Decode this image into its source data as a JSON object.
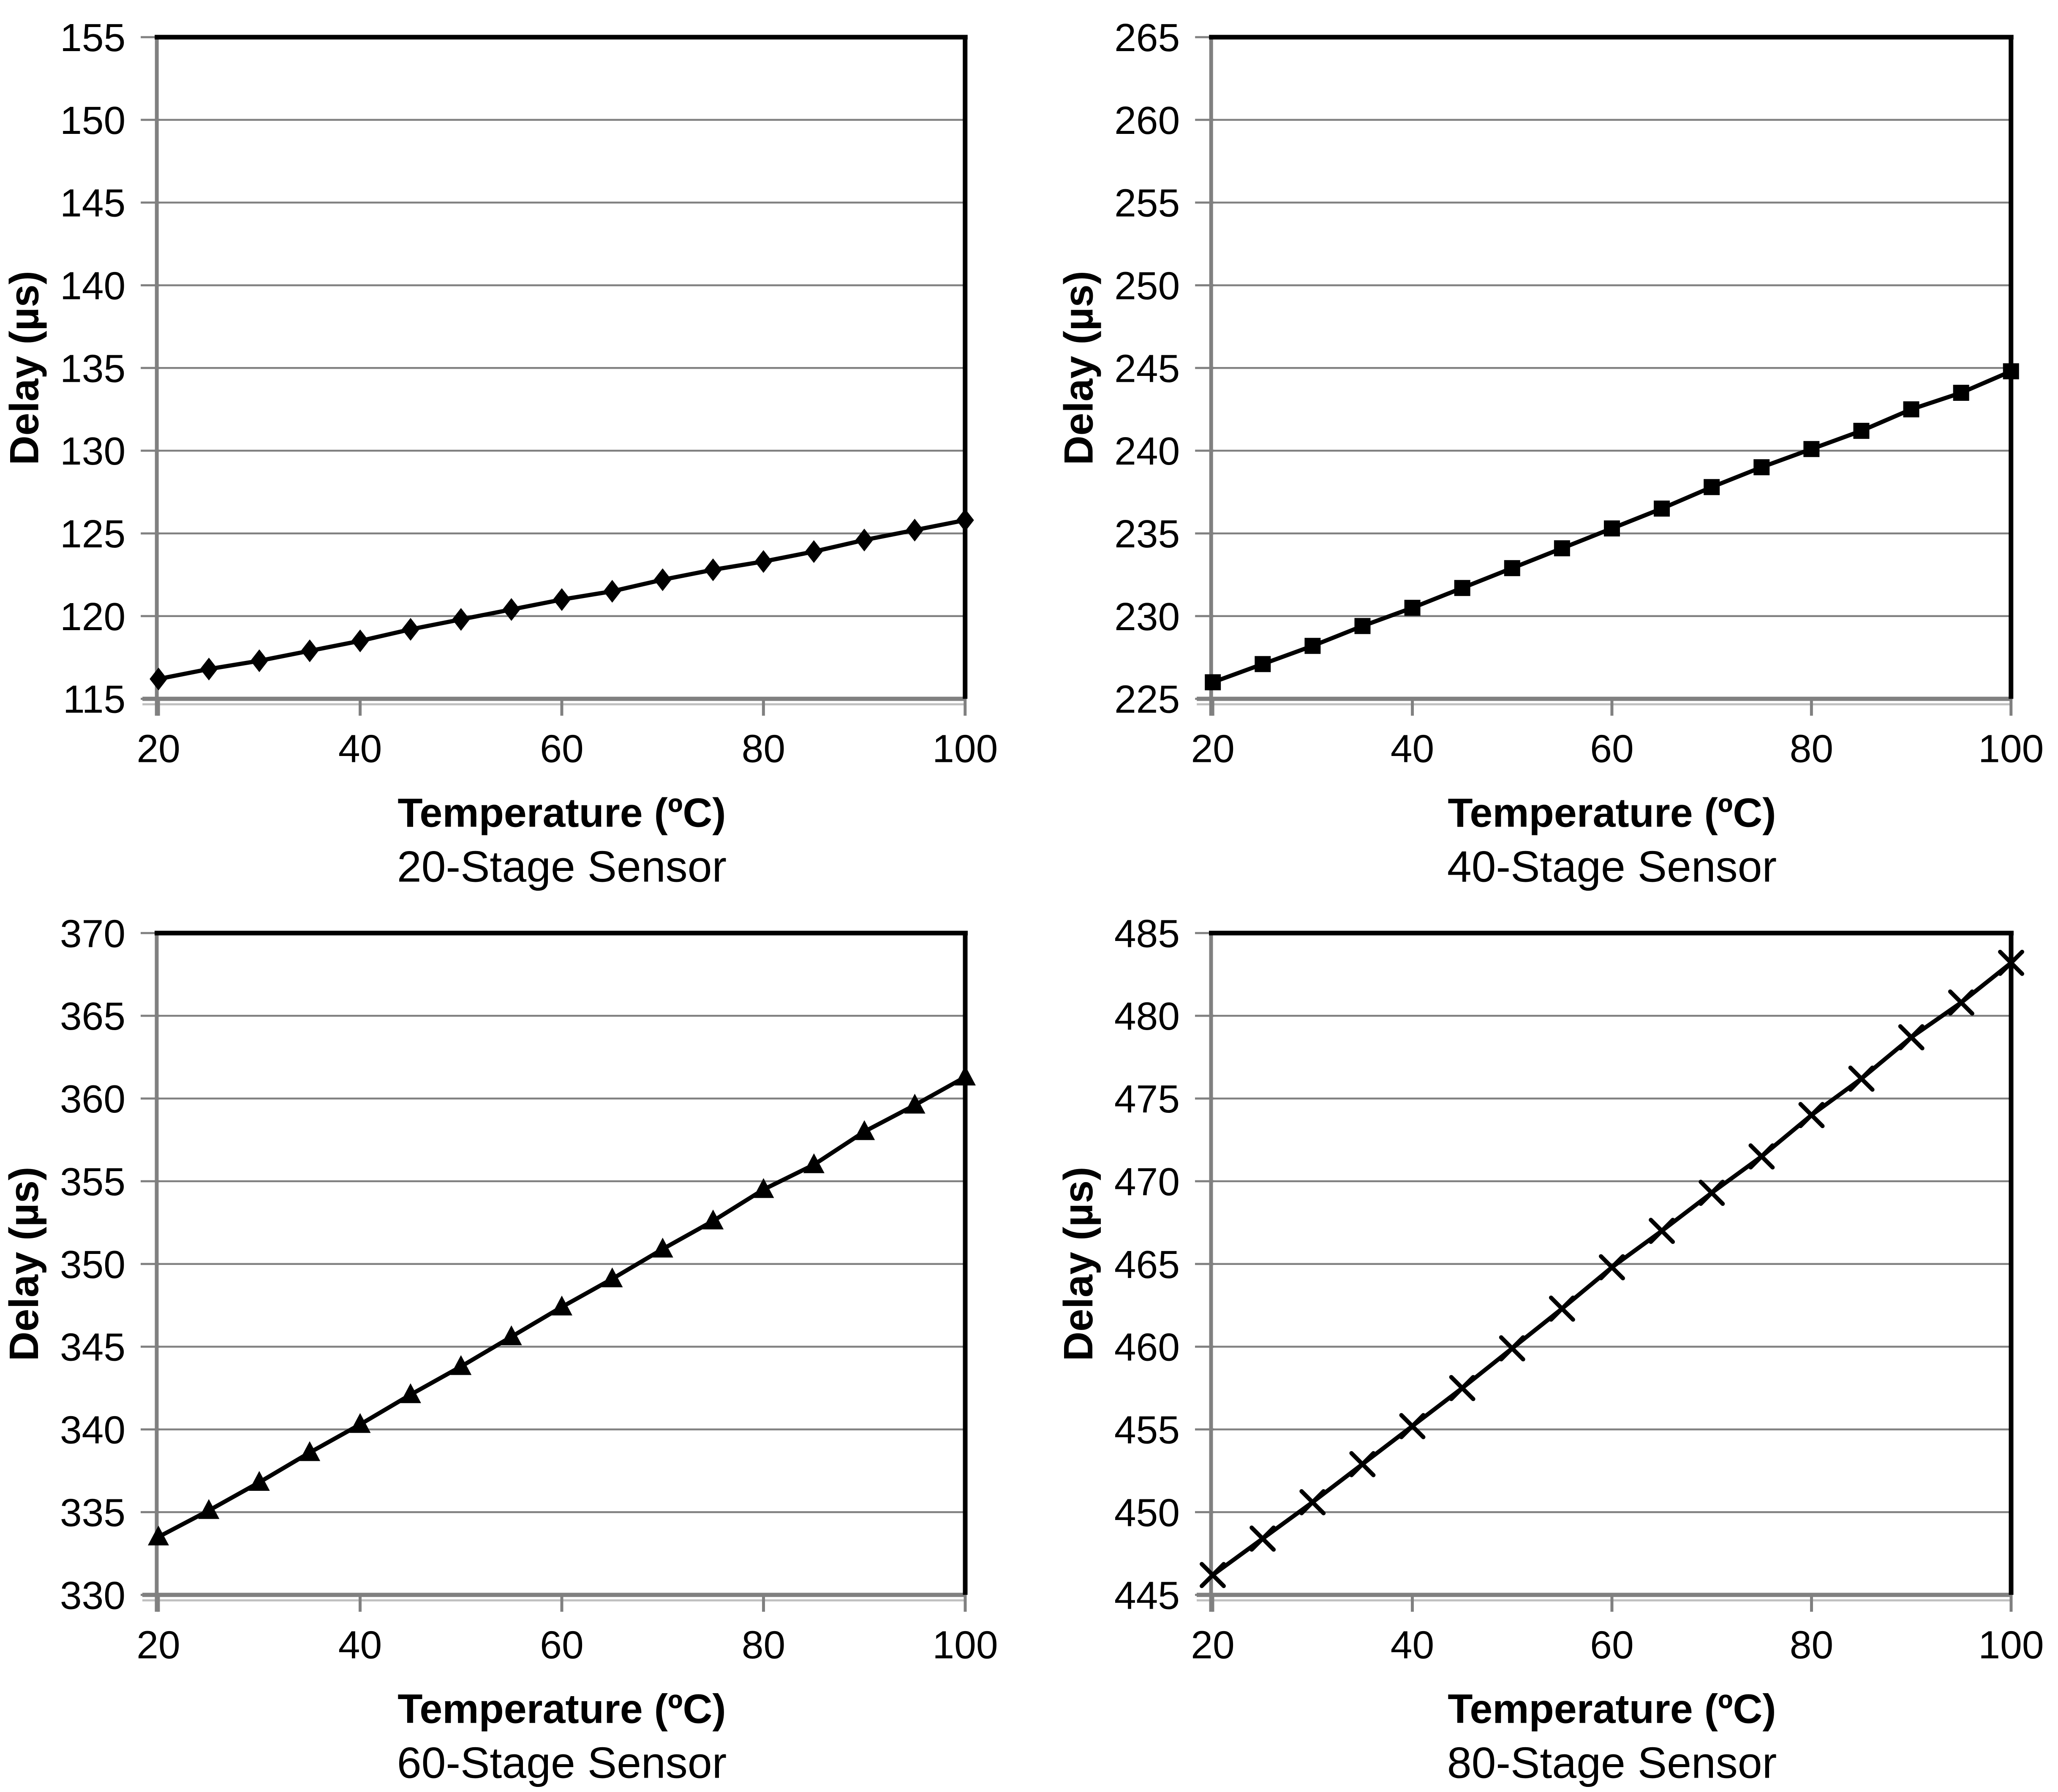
{
  "page": {
    "background": "#ffffff"
  },
  "colors": {
    "series_line": "#000000",
    "marker_fill": "#000000",
    "gridline": "#808080",
    "axis": "#808080",
    "axis_bevel": "#bfbfbf",
    "frame": "#000000",
    "text": "#000000"
  },
  "chart_data": [
    {
      "type": "line",
      "title": "20-Stage Sensor",
      "xlabel": "Temperature (ºC)",
      "ylabel": "Delay (µs)",
      "marker": "diamond",
      "grid": "horizontal",
      "legend": "none",
      "xlim": [
        20,
        100
      ],
      "ylim": [
        115,
        155
      ],
      "xticks": [
        20,
        40,
        60,
        80,
        100
      ],
      "yticks": [
        115,
        120,
        125,
        130,
        135,
        140,
        145,
        150,
        155
      ],
      "x": [
        20,
        25,
        30,
        35,
        40,
        45,
        50,
        55,
        60,
        65,
        70,
        75,
        80,
        85,
        90,
        95,
        100
      ],
      "y": [
        116.2,
        116.8,
        117.3,
        117.9,
        118.5,
        119.2,
        119.8,
        120.4,
        121.0,
        121.5,
        122.2,
        122.8,
        123.3,
        123.9,
        124.6,
        125.2,
        125.8
      ]
    },
    {
      "type": "line",
      "title": "40-Stage Sensor",
      "xlabel": "Temperature (ºC)",
      "ylabel": "Delay (µs)",
      "marker": "square",
      "grid": "horizontal",
      "legend": "none",
      "xlim": [
        20,
        100
      ],
      "ylim": [
        225,
        265
      ],
      "xticks": [
        20,
        40,
        60,
        80,
        100
      ],
      "yticks": [
        225,
        230,
        235,
        240,
        245,
        250,
        255,
        260,
        265
      ],
      "x": [
        20,
        25,
        30,
        35,
        40,
        45,
        50,
        55,
        60,
        65,
        70,
        75,
        80,
        85,
        90,
        95,
        100
      ],
      "y": [
        226.0,
        227.1,
        228.2,
        229.4,
        230.5,
        231.7,
        232.9,
        234.1,
        235.3,
        236.5,
        237.8,
        239.0,
        240.1,
        241.2,
        242.5,
        243.5,
        244.8
      ]
    },
    {
      "type": "line",
      "title": "60-Stage Sensor",
      "xlabel": "Temperature (ºC)",
      "ylabel": "Delay (µs)",
      "marker": "triangle",
      "grid": "horizontal",
      "legend": "none",
      "xlim": [
        20,
        100
      ],
      "ylim": [
        330,
        370
      ],
      "xticks": [
        20,
        40,
        60,
        80,
        100
      ],
      "yticks": [
        330,
        335,
        340,
        345,
        350,
        355,
        360,
        365,
        370
      ],
      "x": [
        20,
        25,
        30,
        35,
        40,
        45,
        50,
        55,
        60,
        65,
        70,
        75,
        80,
        85,
        90,
        95,
        100
      ],
      "y": [
        333.5,
        335.1,
        336.8,
        338.6,
        340.3,
        342.1,
        343.8,
        345.6,
        347.4,
        349.1,
        350.9,
        352.6,
        354.5,
        356.0,
        358.0,
        359.6,
        361.3
      ]
    },
    {
      "type": "line",
      "title": "80-Stage Sensor",
      "xlabel": "Temperature (ºC)",
      "ylabel": "Delay (µs)",
      "marker": "x",
      "grid": "horizontal",
      "legend": "none",
      "xlim": [
        20,
        100
      ],
      "ylim": [
        445,
        485
      ],
      "xticks": [
        20,
        40,
        60,
        80,
        100
      ],
      "yticks": [
        445,
        450,
        455,
        460,
        465,
        470,
        475,
        480,
        485
      ],
      "x": [
        20,
        25,
        30,
        35,
        40,
        45,
        50,
        55,
        60,
        65,
        70,
        75,
        80,
        85,
        90,
        95,
        100
      ],
      "y": [
        446.2,
        448.4,
        450.6,
        452.9,
        455.2,
        457.5,
        459.9,
        462.3,
        464.8,
        467.0,
        469.3,
        471.5,
        474.0,
        476.2,
        478.7,
        480.8,
        483.2
      ]
    }
  ]
}
